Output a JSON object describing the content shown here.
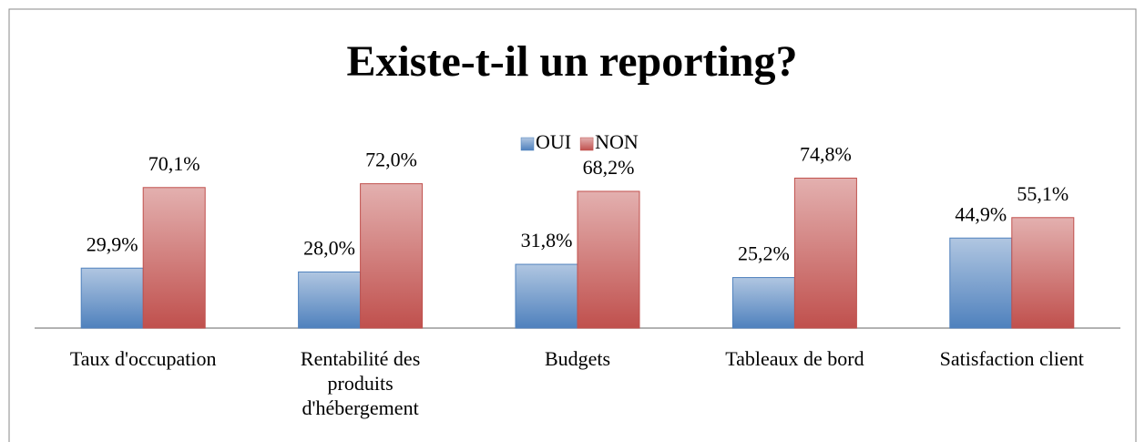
{
  "chart_data": {
    "type": "bar",
    "title": "Existe-t-il un reporting?",
    "categories": [
      "Taux d'occupation",
      "Rentabilité des produits d'hébergement",
      "Budgets",
      "Tableaux de bord",
      "Satisfaction client"
    ],
    "series": [
      {
        "name": "OUI",
        "color": "#4f81bd",
        "values": [
          29.9,
          28.0,
          31.8,
          25.2,
          44.9
        ],
        "value_labels": [
          "29,9%",
          "28,0%",
          "31,8%",
          "25,2%",
          "44,9%"
        ]
      },
      {
        "name": "NON",
        "color": "#c0504d",
        "values": [
          70.1,
          72.0,
          68.2,
          74.8,
          55.1
        ],
        "value_labels": [
          "70,1%",
          "72,0%",
          "68,2%",
          "74,8%",
          "55,1%"
        ]
      }
    ],
    "legend": "top"
  }
}
